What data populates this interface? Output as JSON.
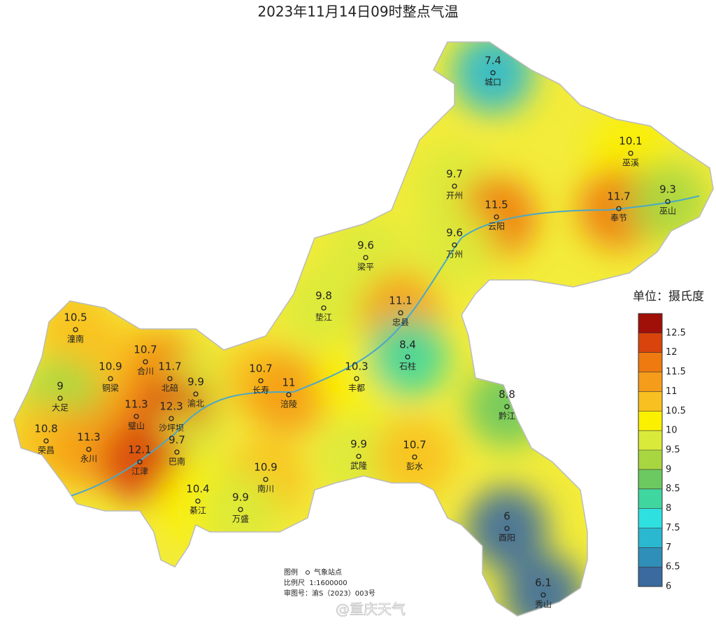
{
  "title": "2023年11月14日09时整点气温",
  "stations": [
    {
      "name": "城口",
      "value": 7.4
    },
    {
      "name": "巫溪",
      "value": 10.1
    },
    {
      "name": "开州",
      "value": 9.7
    },
    {
      "name": "奉节",
      "value": 11.7
    },
    {
      "name": "巫山",
      "value": 9.3
    },
    {
      "name": "云阳",
      "value": 11.5
    },
    {
      "name": "万州",
      "value": 9.6
    },
    {
      "name": "梁平",
      "value": 9.6
    },
    {
      "name": "垫江",
      "value": 9.8
    },
    {
      "name": "忠县",
      "value": 11.1
    },
    {
      "name": "潼南",
      "value": 10.5
    },
    {
      "name": "合川",
      "value": 10.7
    },
    {
      "name": "铜梁",
      "value": 10.9
    },
    {
      "name": "北碚",
      "value": 11.7
    },
    {
      "name": "渝北",
      "value": 9.9
    },
    {
      "name": "大足",
      "value": 9
    },
    {
      "name": "璧山",
      "value": 11.3
    },
    {
      "name": "沙坪坝",
      "value": 12.3
    },
    {
      "name": "长寿",
      "value": 10.7
    },
    {
      "name": "涪陵",
      "value": 11
    },
    {
      "name": "丰都",
      "value": 10.3
    },
    {
      "name": "石柱",
      "value": 8.4
    },
    {
      "name": "荣昌",
      "value": 10.8
    },
    {
      "name": "永川",
      "value": 11.3
    },
    {
      "name": "巴南",
      "value": 9.7
    },
    {
      "name": "江津",
      "value": 12.1
    },
    {
      "name": "黔江",
      "value": 8.8
    },
    {
      "name": "武隆",
      "value": 9.9
    },
    {
      "name": "彭水",
      "value": 10.7
    },
    {
      "name": "南川",
      "value": 10.9
    },
    {
      "name": "綦江",
      "value": 10.4
    },
    {
      "name": "万盛",
      "value": 9.9
    },
    {
      "name": "酉阳",
      "value": 6
    },
    {
      "name": "秀山",
      "value": 6.1
    }
  ],
  "legend": {
    "title": "单位：摄氏度",
    "range": [
      6,
      13
    ],
    "ticks": [
      6,
      6.5,
      7,
      7.5,
      8,
      8.5,
      9,
      9.5,
      10,
      10.5,
      11,
      11.5,
      12,
      12.5
    ],
    "colors": [
      "#3a6a9e",
      "#2f8fb8",
      "#2ab8d0",
      "#2fe0e0",
      "#40d6a0",
      "#6cc860",
      "#a8d640",
      "#daea3a",
      "#fbf000",
      "#f8c020",
      "#f59c1a",
      "#ee7a10",
      "#d8440c",
      "#a01008"
    ]
  },
  "footnote": {
    "legend_label": "图例",
    "station_label": "气象站点",
    "scale": "比例尺  1:1600000",
    "approval": "审图号：渝S（2023）003号"
  },
  "watermark": "@重庆天气"
}
